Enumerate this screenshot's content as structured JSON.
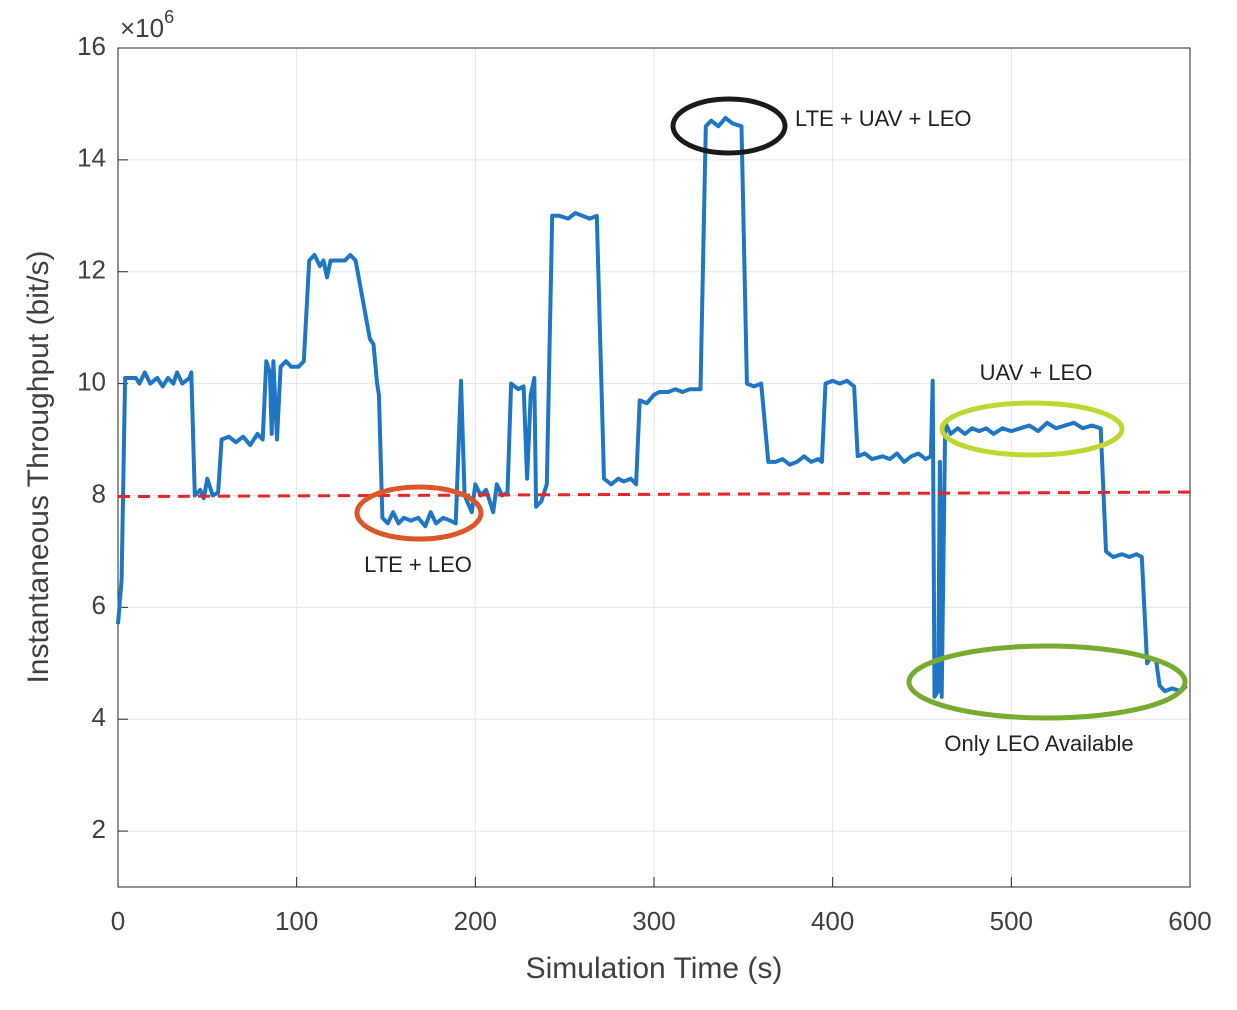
{
  "chart_data": {
    "type": "line",
    "xlabel": "Simulation Time (s)",
    "ylabel": "Instantaneous Throughput (bit/s)",
    "y_multiplier": "×10",
    "y_multiplier_exponent": "6",
    "xlim": [
      0,
      600
    ],
    "xticks": [
      0,
      100,
      200,
      300,
      400,
      500,
      600
    ],
    "ylim": [
      1,
      16
    ],
    "yticks": [
      2,
      4,
      6,
      8,
      10,
      12,
      14,
      16
    ],
    "grid": true,
    "series": [
      {
        "color": "#1f77c4",
        "x": [
          0,
          2,
          4,
          10,
          12,
          15,
          18,
          22,
          25,
          28,
          31,
          33,
          36,
          40,
          41,
          43,
          46,
          48,
          50,
          53,
          56,
          58,
          62,
          66,
          70,
          74,
          78,
          81,
          83,
          85,
          86,
          87,
          89,
          91,
          94,
          97,
          101,
          104,
          107,
          110,
          113,
          115,
          117,
          119,
          123,
          127,
          130,
          133,
          141,
          143,
          145,
          146,
          148,
          151,
          154,
          157,
          160,
          164,
          168,
          172,
          175,
          178,
          182,
          186,
          189,
          192,
          194,
          198,
          200,
          203,
          206,
          210,
          212,
          215,
          218,
          220,
          224,
          227,
          229,
          231,
          233,
          234,
          237,
          240,
          243,
          247,
          252,
          256,
          260,
          264,
          268,
          272,
          276,
          280,
          283,
          287,
          290,
          292,
          296,
          300,
          303,
          308,
          312,
          316,
          320,
          326,
          329,
          332,
          336,
          340,
          344,
          349,
          352,
          356,
          360,
          364,
          368,
          372,
          376,
          380,
          384,
          388,
          392,
          394,
          396,
          400,
          404,
          408,
          412,
          414,
          418,
          422,
          428,
          432,
          436,
          440,
          444,
          448,
          452,
          455,
          456,
          457,
          459,
          460,
          461,
          463,
          466,
          470,
          474,
          478,
          482,
          486,
          490,
          495,
          500,
          505,
          510,
          515,
          520,
          525,
          530,
          535,
          540,
          545,
          550,
          553,
          557,
          562,
          566,
          570,
          573,
          576,
          578,
          581,
          583,
          586,
          590,
          595,
          598
        ],
        "values": [
          5.7,
          6.5,
          10.1,
          10.1,
          10.0,
          10.2,
          10.0,
          10.1,
          9.95,
          10.1,
          10.0,
          10.2,
          10.0,
          10.1,
          10.2,
          8.0,
          8.1,
          7.95,
          8.3,
          8.0,
          8.05,
          9.0,
          9.05,
          8.95,
          9.05,
          8.9,
          9.1,
          9.0,
          10.4,
          10.2,
          9.1,
          10.4,
          9.0,
          10.3,
          10.4,
          10.3,
          10.3,
          10.4,
          12.2,
          12.3,
          12.1,
          12.2,
          11.9,
          12.2,
          12.2,
          12.2,
          12.3,
          12.2,
          10.8,
          10.7,
          10.0,
          9.8,
          7.6,
          7.5,
          7.7,
          7.5,
          7.6,
          7.55,
          7.6,
          7.45,
          7.7,
          7.5,
          7.6,
          7.55,
          7.5,
          10.05,
          8.0,
          7.7,
          8.2,
          8.0,
          8.1,
          7.7,
          8.2,
          8.0,
          8.05,
          10.0,
          9.9,
          9.95,
          8.3,
          9.8,
          10.1,
          7.8,
          7.9,
          8.2,
          13.0,
          13.0,
          12.95,
          13.05,
          13.0,
          12.95,
          13.0,
          8.3,
          8.2,
          8.3,
          8.25,
          8.3,
          8.2,
          9.7,
          9.65,
          9.8,
          9.85,
          9.85,
          9.9,
          9.85,
          9.9,
          9.9,
          14.6,
          14.7,
          14.6,
          14.75,
          14.65,
          14.6,
          10.0,
          9.95,
          10.0,
          8.6,
          8.6,
          8.65,
          8.55,
          8.6,
          8.7,
          8.6,
          8.65,
          8.6,
          10.0,
          10.05,
          10.0,
          10.05,
          9.95,
          8.7,
          8.75,
          8.65,
          8.7,
          8.65,
          8.75,
          8.6,
          8.7,
          8.75,
          8.65,
          8.7,
          10.05,
          4.4,
          4.5,
          8.6,
          4.4,
          9.3,
          9.1,
          9.2,
          9.1,
          9.2,
          9.15,
          9.2,
          9.1,
          9.2,
          9.15,
          9.2,
          9.25,
          9.15,
          9.3,
          9.2,
          9.25,
          9.3,
          9.2,
          9.25,
          9.2,
          7.0,
          6.9,
          6.95,
          6.9,
          6.95,
          6.9,
          5.0,
          5.1,
          5.05,
          4.6,
          4.5,
          4.55,
          4.5,
          4.6
        ]
      }
    ],
    "reference_line": {
      "color": "#e8262a",
      "x": [
        0,
        600
      ],
      "values": [
        7.98,
        8.06
      ]
    },
    "annotations": [
      {
        "text": "LTE + UAV + LEO",
        "color": "#1a1a1a"
      },
      {
        "text": "UAV + LEO",
        "color": "#bfd730"
      },
      {
        "text": "LTE + LEO",
        "color": "#dc5627"
      },
      {
        "text": "Only LEO Available",
        "color": "#77ac30"
      }
    ]
  }
}
